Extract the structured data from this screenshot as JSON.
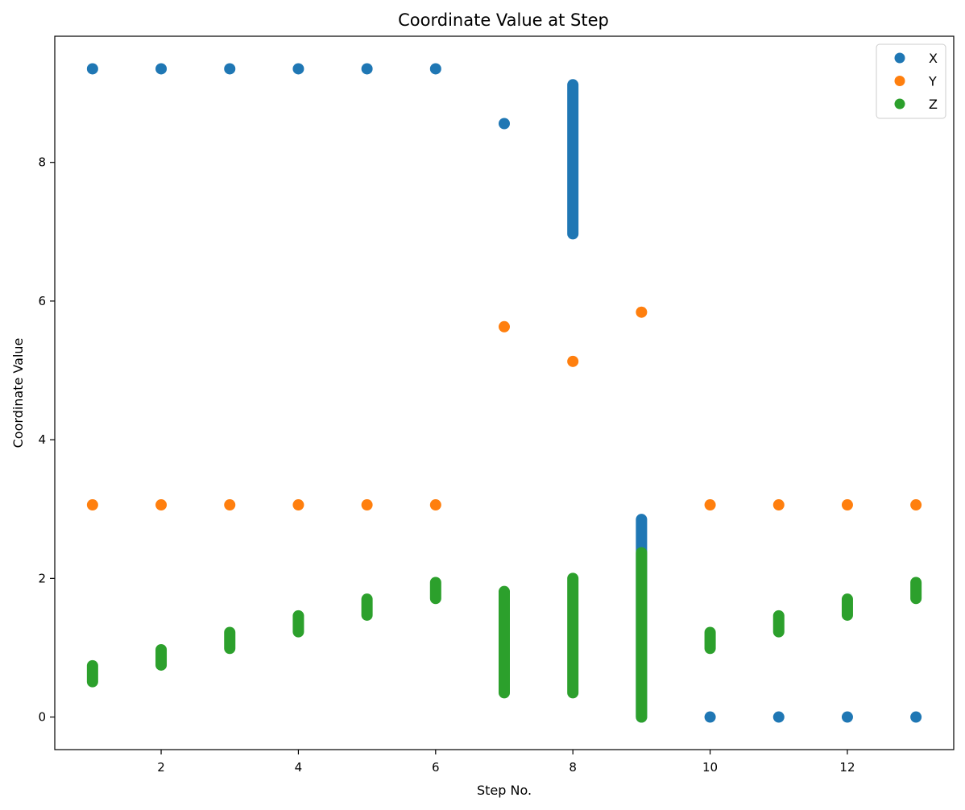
{
  "chart_data": {
    "type": "scatter",
    "title": "Coordinate Value at Step",
    "xlabel": "Step No.",
    "ylabel": "Coordinate Value",
    "xlim": [
      0.45,
      13.55
    ],
    "ylim": [
      -0.47,
      9.82
    ],
    "xticks": [
      2,
      4,
      6,
      8,
      10,
      12
    ],
    "yticks": [
      0,
      2,
      4,
      6,
      8
    ],
    "grid": false,
    "legend_position": "top-right",
    "series": [
      {
        "name": "X",
        "color": "#1f77b4",
        "points": [
          {
            "x": 1,
            "y": 9.35
          },
          {
            "x": 2,
            "y": 9.35
          },
          {
            "x": 3,
            "y": 9.35
          },
          {
            "x": 4,
            "y": 9.35
          },
          {
            "x": 5,
            "y": 9.35
          },
          {
            "x": 6,
            "y": 9.35
          },
          {
            "x": 7,
            "y": 8.56
          },
          {
            "x": 10,
            "y": 0.0
          },
          {
            "x": 11,
            "y": 0.0
          },
          {
            "x": 12,
            "y": 0.0
          },
          {
            "x": 13,
            "y": 0.0
          }
        ],
        "ranges": [
          {
            "x": 8,
            "y_min": 6.97,
            "y_max": 9.12
          },
          {
            "x": 9,
            "y_min": 0.0,
            "y_max": 2.85
          }
        ]
      },
      {
        "name": "Y",
        "color": "#ff7f0e",
        "points": [
          {
            "x": 1,
            "y": 3.06
          },
          {
            "x": 2,
            "y": 3.06
          },
          {
            "x": 3,
            "y": 3.06
          },
          {
            "x": 4,
            "y": 3.06
          },
          {
            "x": 5,
            "y": 3.06
          },
          {
            "x": 6,
            "y": 3.06
          },
          {
            "x": 7,
            "y": 5.63
          },
          {
            "x": 8,
            "y": 5.13
          },
          {
            "x": 9,
            "y": 5.84
          },
          {
            "x": 10,
            "y": 3.06
          },
          {
            "x": 11,
            "y": 3.06
          },
          {
            "x": 12,
            "y": 3.06
          },
          {
            "x": 13,
            "y": 3.06
          }
        ],
        "ranges": []
      },
      {
        "name": "Z",
        "color": "#2ca02c",
        "points": [],
        "ranges": [
          {
            "x": 1,
            "y_min": 0.51,
            "y_max": 0.74
          },
          {
            "x": 2,
            "y_min": 0.75,
            "y_max": 0.97
          },
          {
            "x": 3,
            "y_min": 0.99,
            "y_max": 1.22
          },
          {
            "x": 4,
            "y_min": 1.23,
            "y_max": 1.46
          },
          {
            "x": 5,
            "y_min": 1.47,
            "y_max": 1.7
          },
          {
            "x": 6,
            "y_min": 1.71,
            "y_max": 1.94
          },
          {
            "x": 7,
            "y_min": 0.35,
            "y_max": 1.81
          },
          {
            "x": 8,
            "y_min": 0.35,
            "y_max": 2.0
          },
          {
            "x": 9,
            "y_min": 0.0,
            "y_max": 2.37
          },
          {
            "x": 10,
            "y_min": 0.99,
            "y_max": 1.22
          },
          {
            "x": 11,
            "y_min": 1.23,
            "y_max": 1.46
          },
          {
            "x": 12,
            "y_min": 1.47,
            "y_max": 1.7
          },
          {
            "x": 13,
            "y_min": 1.71,
            "y_max": 1.94
          }
        ]
      }
    ]
  }
}
